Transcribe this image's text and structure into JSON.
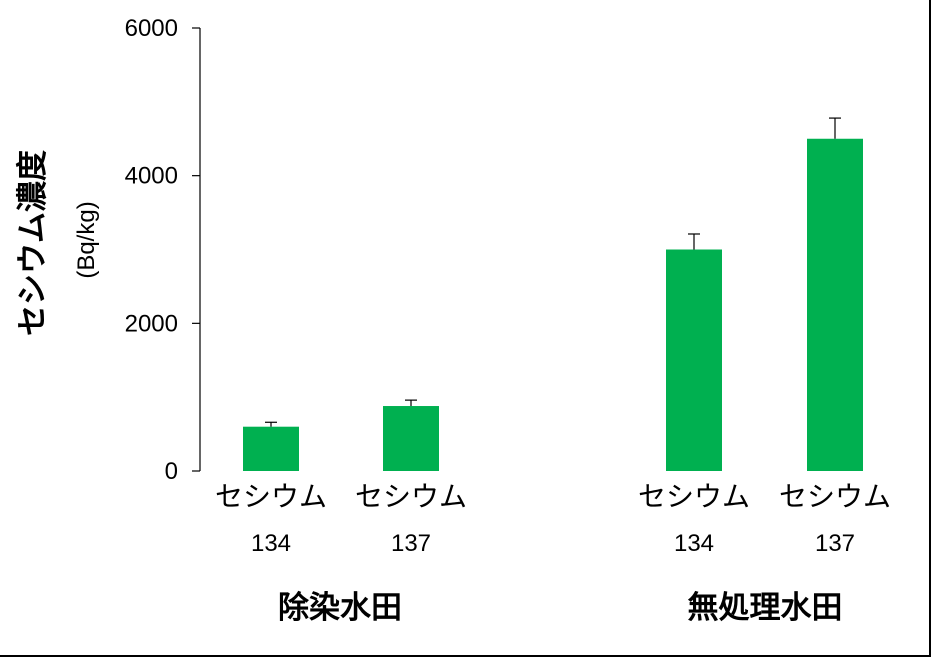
{
  "chart_data": {
    "type": "bar",
    "ylabel": "セシウム濃度",
    "ylabel_unit": "(Bq/kg)",
    "ylim": [
      0,
      6000
    ],
    "yticks": [
      0,
      2000,
      4000,
      6000
    ],
    "grid": false,
    "groups": [
      {
        "label": "除染水田",
        "bars": [
          {
            "category": [
              "セシウム",
              "134"
            ],
            "value": 600,
            "error": 60
          },
          {
            "category": [
              "セシウム",
              "137"
            ],
            "value": 880,
            "error": 80
          }
        ]
      },
      {
        "label": "無処理水田",
        "bars": [
          {
            "category": [
              "セシウム",
              "134"
            ],
            "value": 3000,
            "error": 210
          },
          {
            "category": [
              "セシウム",
              "137"
            ],
            "value": 4500,
            "error": 280
          }
        ]
      }
    ],
    "bar_color": "#00b050"
  }
}
